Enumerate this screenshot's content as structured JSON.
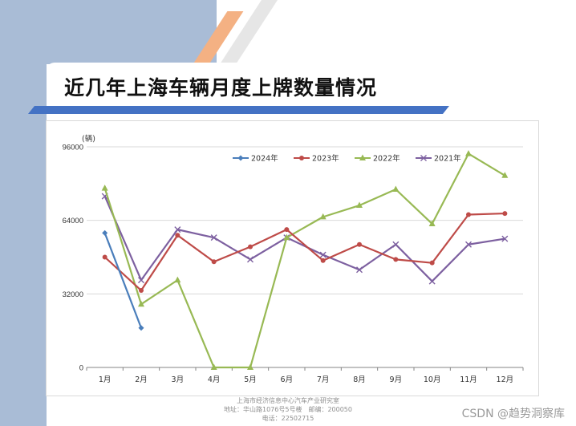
{
  "page": {
    "title": "近几年上海车辆月度上牌数量情况",
    "footer_lines": [
      "上海市经济信息中心汽车产业研究室",
      "地址：华山路1076号5号楼　邮编：200050",
      "电话：22502715"
    ],
    "watermark": "CSDN @趋势洞察库"
  },
  "colors": {
    "band": "#a9bcd6",
    "accent_orange": "#f4b183",
    "title_line": "#4472c4"
  },
  "chart_data": {
    "type": "line",
    "unit_label": "(辆)",
    "categories": [
      "1月",
      "2月",
      "3月",
      "4月",
      "5月",
      "6月",
      "7月",
      "8月",
      "9月",
      "10月",
      "11月",
      "12月"
    ],
    "ylim": [
      0,
      96000
    ],
    "yticks": [
      0,
      32000,
      64000,
      96000
    ],
    "ytick_labels": [
      "0",
      "32000",
      "64000",
      "96000"
    ],
    "grid": true,
    "legend_position": "top",
    "series": [
      {
        "name": "2024年",
        "color": "#4a7ebb",
        "marker": "diamond",
        "values": [
          58500,
          17200,
          null,
          null,
          null,
          null,
          null,
          null,
          null,
          null,
          null,
          null
        ]
      },
      {
        "name": "2023年",
        "color": "#be4b48",
        "marker": "circle",
        "values": [
          48000,
          33500,
          57500,
          46000,
          52500,
          60000,
          46500,
          53500,
          47000,
          45500,
          66500,
          67000
        ]
      },
      {
        "name": "2022年",
        "color": "#98b954",
        "marker": "triangle",
        "values": [
          78000,
          27500,
          38000,
          0,
          0,
          56500,
          65500,
          70500,
          77500,
          62500,
          93000,
          83500
        ]
      },
      {
        "name": "2021年",
        "color": "#7d60a0",
        "marker": "x",
        "values": [
          74500,
          38000,
          60000,
          56500,
          47000,
          56500,
          49000,
          42500,
          53500,
          37500,
          53500,
          56000
        ]
      }
    ]
  }
}
